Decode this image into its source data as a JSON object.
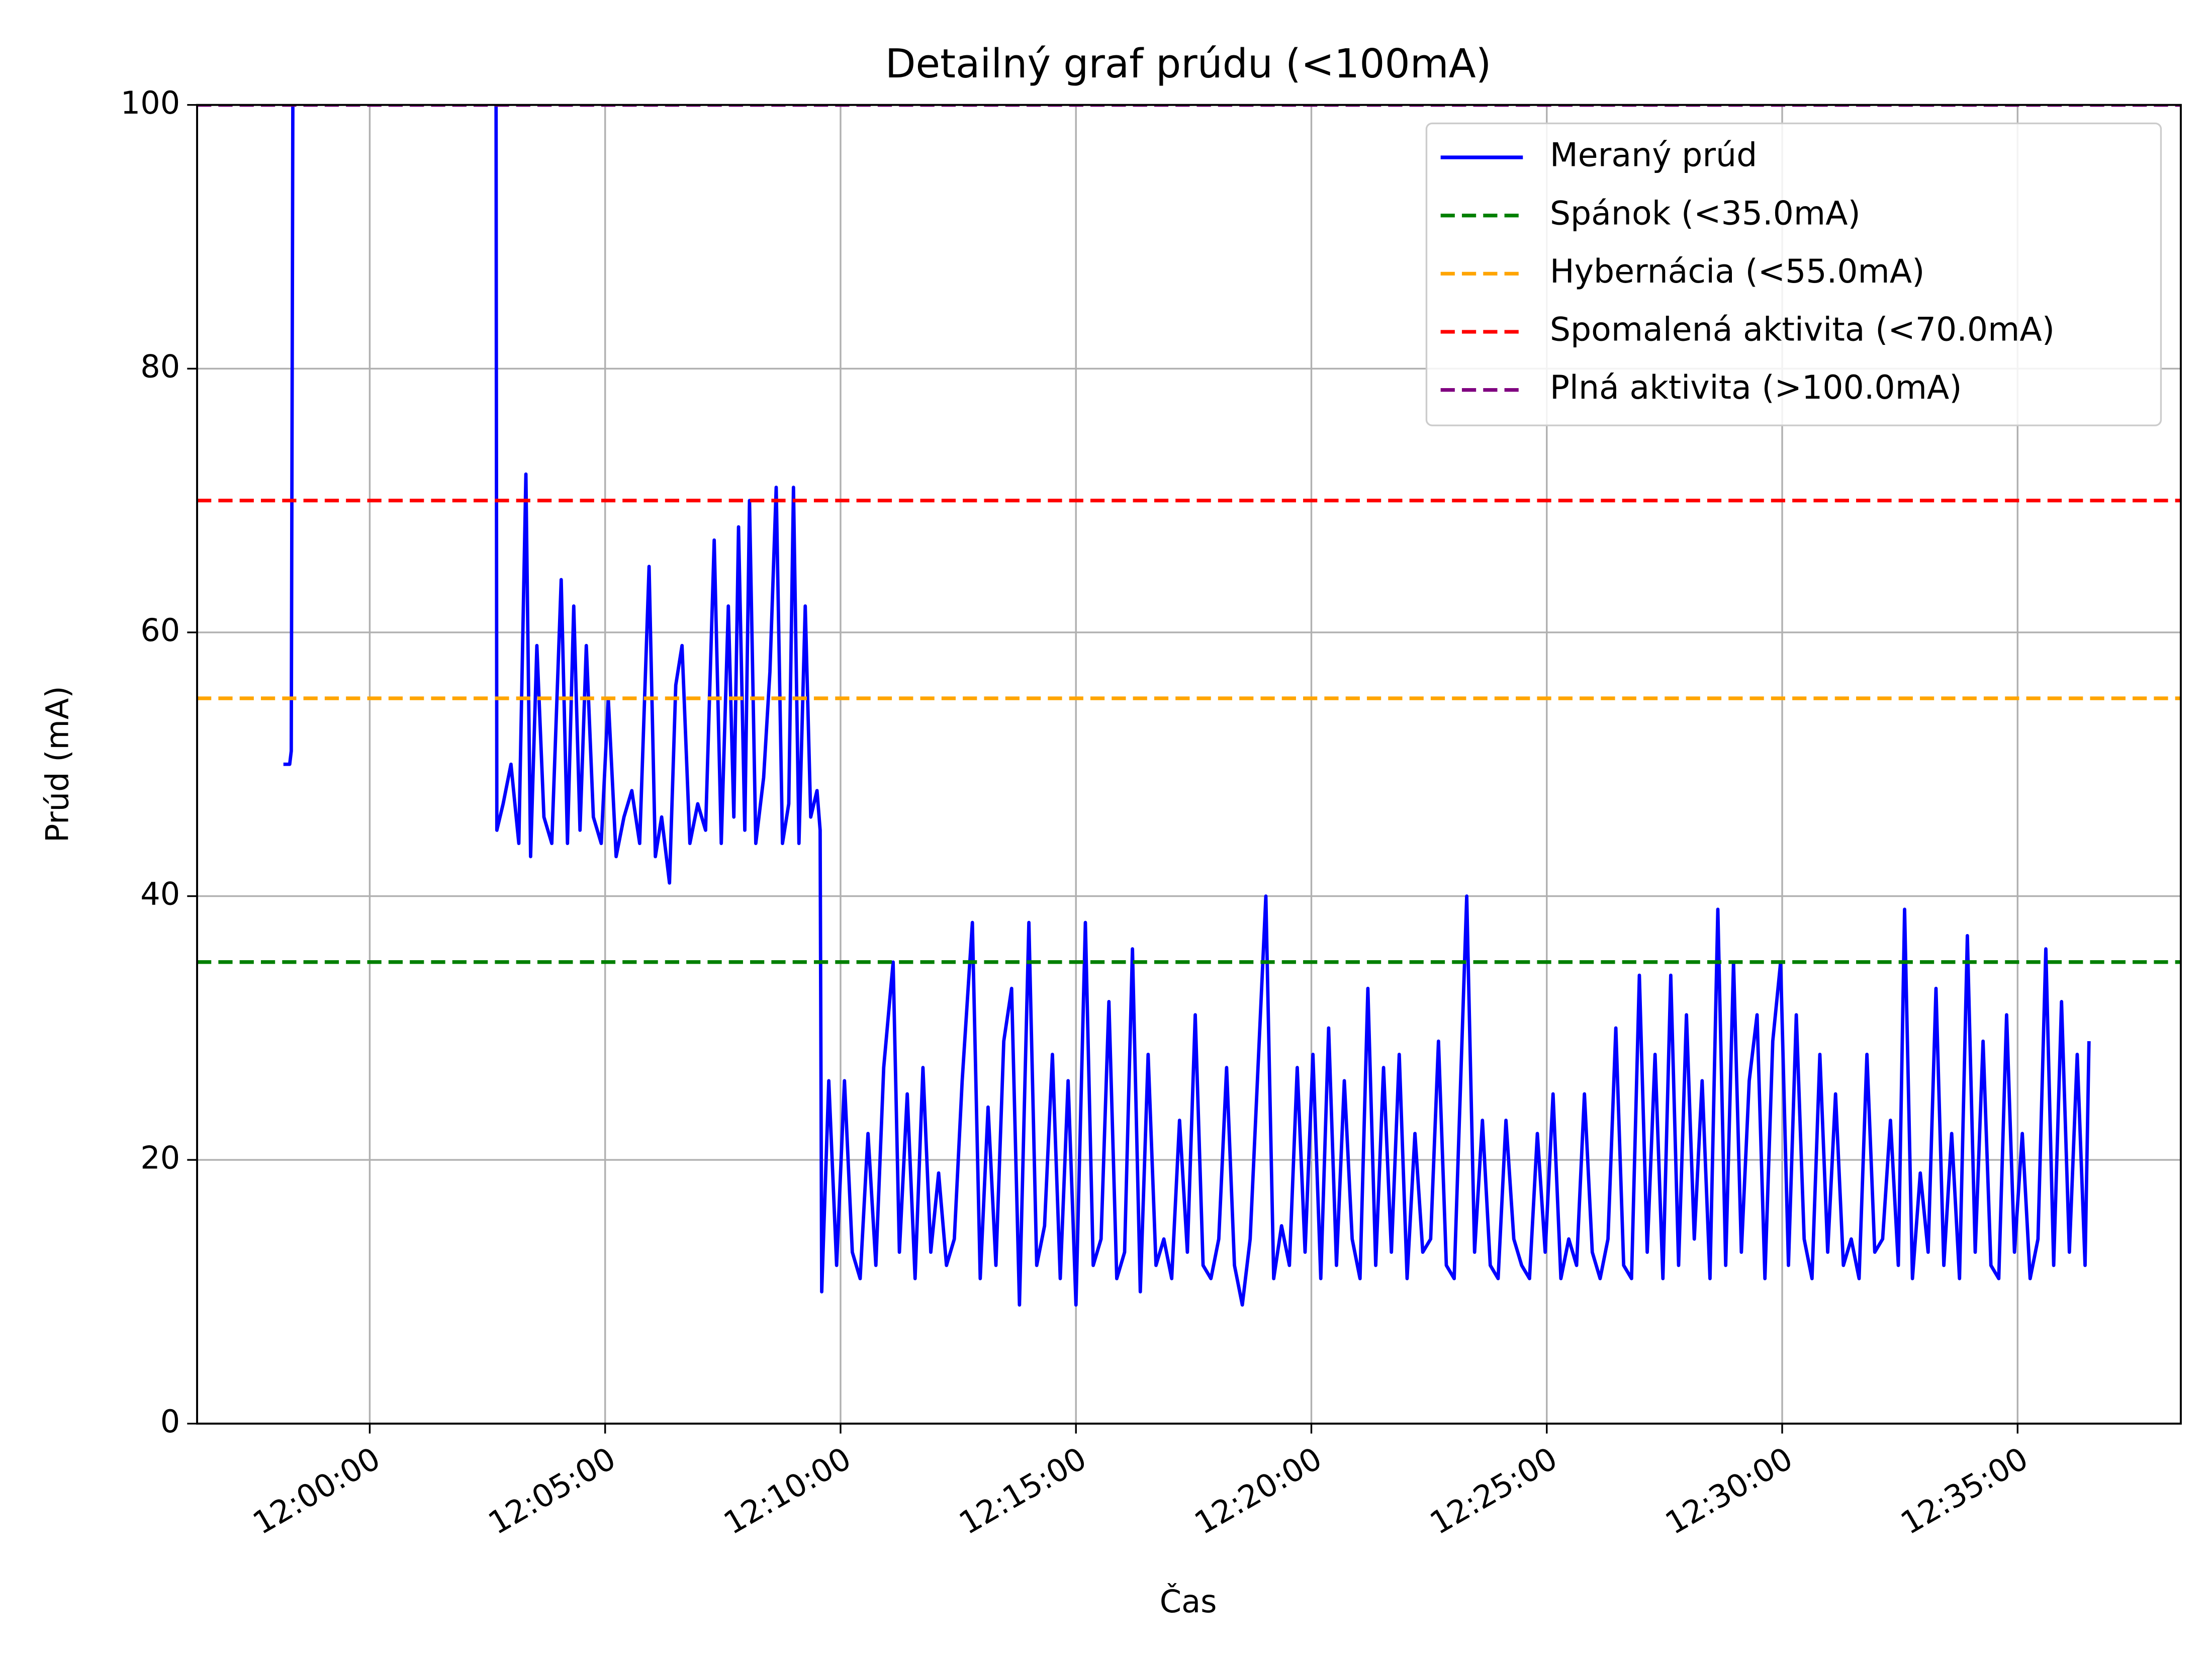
{
  "chart_data": {
    "type": "line",
    "title": "Detailný graf prúdu (<100mA)",
    "xlabel": "Čas",
    "ylabel": "Prúd (mA)",
    "xlim": [
      "11:56:20",
      "12:38:28"
    ],
    "xticks": [
      "12:00:00",
      "12:05:00",
      "12:10:00",
      "12:15:00",
      "12:20:00",
      "12:25:00",
      "12:30:00",
      "12:35:00"
    ],
    "ylim": [
      0,
      100
    ],
    "yticks": [
      0,
      20,
      40,
      60,
      80,
      100
    ],
    "grid": true,
    "legend": "upper right",
    "series": [
      {
        "name": "Meraný prúd",
        "color": "#0000ff",
        "x": [
          "11:58:10",
          "11:58:18",
          "11:58:20",
          "11:58:22",
          "12:00:30",
          "12:02:41",
          "12:02:42",
          "12:02:50",
          "12:03:00",
          "12:03:10",
          "12:03:19",
          "12:03:25",
          "12:03:33",
          "12:03:42",
          "12:03:52",
          "12:04:04",
          "12:04:12",
          "12:04:20",
          "12:04:28",
          "12:04:36",
          "12:04:45",
          "12:04:55",
          "12:05:04",
          "12:05:14",
          "12:05:24",
          "12:05:34",
          "12:05:44",
          "12:05:56",
          "12:06:04",
          "12:06:12",
          "12:06:22",
          "12:06:30",
          "12:06:38",
          "12:06:48",
          "12:06:58",
          "12:07:08",
          "12:07:19",
          "12:07:28",
          "12:07:37",
          "12:07:44",
          "12:07:50",
          "12:07:58",
          "12:08:04",
          "12:08:12",
          "12:08:22",
          "12:08:30",
          "12:08:38",
          "12:08:46",
          "12:08:54",
          "12:09:00",
          "12:09:07",
          "12:09:15",
          "12:09:22",
          "12:09:30",
          "12:09:34",
          "12:09:36",
          "12:09:45",
          "12:09:55",
          "12:10:05",
          "12:10:15",
          "12:10:25",
          "12:10:35",
          "12:10:45",
          "12:10:55",
          "12:11:07",
          "12:11:15",
          "12:11:25",
          "12:11:35",
          "12:11:45",
          "12:11:55",
          "12:12:05",
          "12:12:15",
          "12:12:25",
          "12:12:35",
          "12:12:48",
          "12:12:58",
          "12:13:08",
          "12:13:18",
          "12:13:28",
          "12:13:38",
          "12:13:48",
          "12:14:00",
          "12:14:10",
          "12:14:20",
          "12:14:30",
          "12:14:40",
          "12:14:50",
          "12:15:00",
          "12:15:12",
          "12:15:22",
          "12:15:32",
          "12:15:42",
          "12:15:52",
          "12:16:02",
          "12:16:12",
          "12:16:22",
          "12:16:32",
          "12:16:42",
          "12:16:52",
          "12:17:02",
          "12:17:12",
          "12:17:22",
          "12:17:32",
          "12:17:42",
          "12:17:52",
          "12:18:02",
          "12:18:12",
          "12:18:22",
          "12:18:32",
          "12:18:42",
          "12:19:02",
          "12:19:12",
          "12:19:22",
          "12:19:32",
          "12:19:42",
          "12:19:52",
          "12:20:02",
          "12:20:12",
          "12:20:22",
          "12:20:32",
          "12:20:42",
          "12:20:52",
          "12:21:02",
          "12:21:12",
          "12:21:22",
          "12:21:32",
          "12:21:42",
          "12:21:52",
          "12:22:02",
          "12:22:12",
          "12:22:22",
          "12:22:32",
          "12:22:42",
          "12:22:52",
          "12:23:02",
          "12:23:18",
          "12:23:28",
          "12:23:38",
          "12:23:48",
          "12:23:58",
          "12:24:08",
          "12:24:18",
          "12:24:28",
          "12:24:38",
          "12:24:48",
          "12:24:58",
          "12:25:08",
          "12:25:18",
          "12:25:28",
          "12:25:38",
          "12:25:48",
          "12:25:58",
          "12:26:08",
          "12:26:18",
          "12:26:28",
          "12:26:38",
          "12:26:48",
          "12:26:58",
          "12:27:08",
          "12:27:18",
          "12:27:28",
          "12:27:38",
          "12:27:48",
          "12:27:58",
          "12:28:08",
          "12:28:18",
          "12:28:28",
          "12:28:38",
          "12:28:48",
          "12:28:58",
          "12:29:08",
          "12:29:18",
          "12:29:28",
          "12:29:38",
          "12:29:48",
          "12:29:58",
          "12:30:08",
          "12:30:18",
          "12:30:28",
          "12:30:38",
          "12:30:48",
          "12:30:58",
          "12:31:08",
          "12:31:18",
          "12:31:28",
          "12:31:38",
          "12:31:48",
          "12:31:58",
          "12:32:08",
          "12:32:18",
          "12:32:28",
          "12:32:36",
          "12:32:46",
          "12:32:56",
          "12:33:06",
          "12:33:16",
          "12:33:26",
          "12:33:36",
          "12:33:46",
          "12:33:56",
          "12:34:06",
          "12:34:16",
          "12:34:26",
          "12:34:36",
          "12:34:46",
          "12:34:56",
          "12:35:06",
          "12:35:16",
          "12:35:26",
          "12:35:36",
          "12:35:46",
          "12:35:56",
          "12:36:06",
          "12:36:16",
          "12:36:26",
          "12:36:31"
        ],
        "values": [
          50,
          50,
          51,
          100,
          null,
          100,
          45,
          47,
          50,
          44,
          72,
          43,
          59,
          46,
          44,
          64,
          44,
          62,
          45,
          59,
          46,
          44,
          55,
          43,
          46,
          48,
          44,
          65,
          43,
          46,
          41,
          56,
          59,
          44,
          47,
          45,
          67,
          44,
          62,
          46,
          68,
          45,
          70,
          44,
          49,
          57,
          71,
          44,
          47,
          71,
          44,
          62,
          46,
          48,
          45,
          10,
          26,
          12,
          26,
          13,
          11,
          22,
          12,
          27,
          35,
          13,
          25,
          11,
          27,
          13,
          19,
          12,
          14,
          26,
          38,
          11,
          24,
          12,
          29,
          33,
          9,
          38,
          12,
          15,
          28,
          11,
          26,
          9,
          38,
          12,
          14,
          32,
          11,
          13,
          36,
          10,
          28,
          12,
          14,
          11,
          23,
          13,
          31,
          12,
          11,
          14,
          27,
          12,
          9,
          14,
          40,
          11,
          15,
          12,
          27,
          13,
          28,
          11,
          30,
          12,
          26,
          14,
          11,
          33,
          12,
          27,
          13,
          28,
          11,
          22,
          13,
          14,
          29,
          12,
          11,
          40,
          13,
          23,
          12,
          11,
          23,
          14,
          12,
          11,
          22,
          13,
          25,
          11,
          14,
          12,
          25,
          13,
          11,
          14,
          30,
          12,
          11,
          34,
          13,
          28,
          11,
          34,
          12,
          31,
          14,
          26,
          11,
          39,
          12,
          35,
          13,
          26,
          31,
          11,
          29,
          35,
          12,
          31,
          14,
          11,
          28,
          13,
          25,
          12,
          14,
          11,
          28,
          13,
          14,
          23,
          12,
          39,
          11,
          19,
          13,
          33,
          12,
          22,
          11,
          37,
          13,
          29,
          12,
          11,
          31,
          13,
          22,
          11,
          14,
          36,
          12,
          32,
          13,
          28,
          12,
          29
        ]
      }
    ],
    "thresholds": [
      {
        "name": "Spánok (<35.0mA)",
        "color": "green",
        "value": 35
      },
      {
        "name": "Hybernácia (<55.0mA)",
        "color": "orange",
        "value": 55
      },
      {
        "name": "Spomalená aktivita (<70.0mA)",
        "color": "red",
        "value": 70
      },
      {
        "name": "Plná aktivita (>100.0mA)",
        "color": "purple",
        "value": 100
      }
    ]
  }
}
